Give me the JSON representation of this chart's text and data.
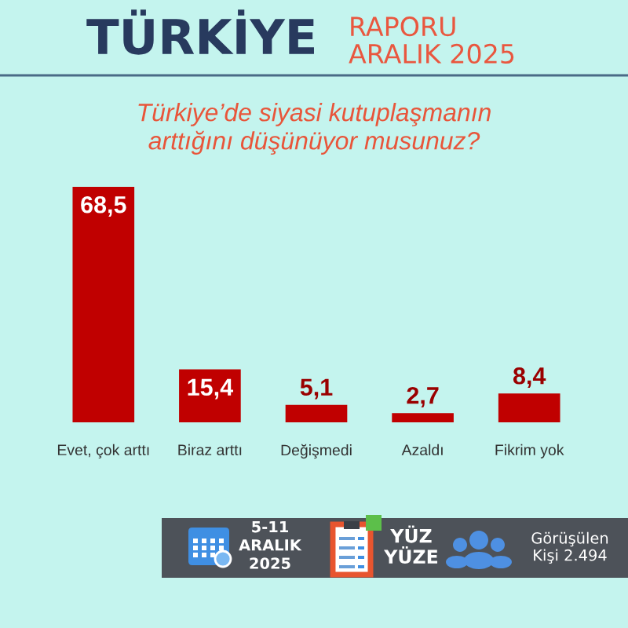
{
  "chart_data": {
    "type": "bar",
    "title": "Türkiye’de siyasi kutuplaşmanın\narttığını düşünüyor musunuz?",
    "categories": [
      "Evet, çok arttı",
      "Biraz arttı",
      "Değişmedi",
      "Azaldı",
      "Fikrim yok"
    ],
    "values": [
      68.5,
      15.4,
      5.1,
      2.7,
      8.4
    ],
    "color": "#c00000",
    "value_labels": [
      "68,5",
      "15,4",
      "5,1",
      "2,7",
      "8,4"
    ],
    "tick_labels": "x",
    "annotations": [
      "TÜRKİYE",
      "RAPORU\nARALIK 2025",
      "5-11\nARALIK\n2025",
      "YÜZ\nYÜZE",
      "Görüşülen\nKişi 2.494"
    ]
  }
}
